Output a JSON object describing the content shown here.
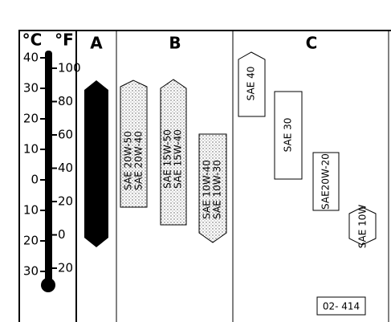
{
  "headers": {
    "celsius": "°C",
    "fahrenheit": "°F",
    "a": "A",
    "b": "B",
    "c": "C"
  },
  "celsius_scale": [
    "40",
    "30",
    "20",
    "10",
    "0",
    "10",
    "20",
    "30"
  ],
  "fahrenheit_scale": [
    "100",
    "80",
    "60",
    "40",
    "20",
    "0",
    "20"
  ],
  "column_b": [
    {
      "line1": "SAE 20W-50",
      "line2": "SAE 20W-40"
    },
    {
      "line1": "SAE 15W-50",
      "line2": "SAE 15W-40"
    },
    {
      "line1": "SAE 10W-40",
      "line2": "SAE 10W-30"
    }
  ],
  "column_c": [
    "SAE 40",
    "SAE 30",
    "SAE20W-20",
    "SAE 10W"
  ],
  "figure_id": "02- 414"
}
